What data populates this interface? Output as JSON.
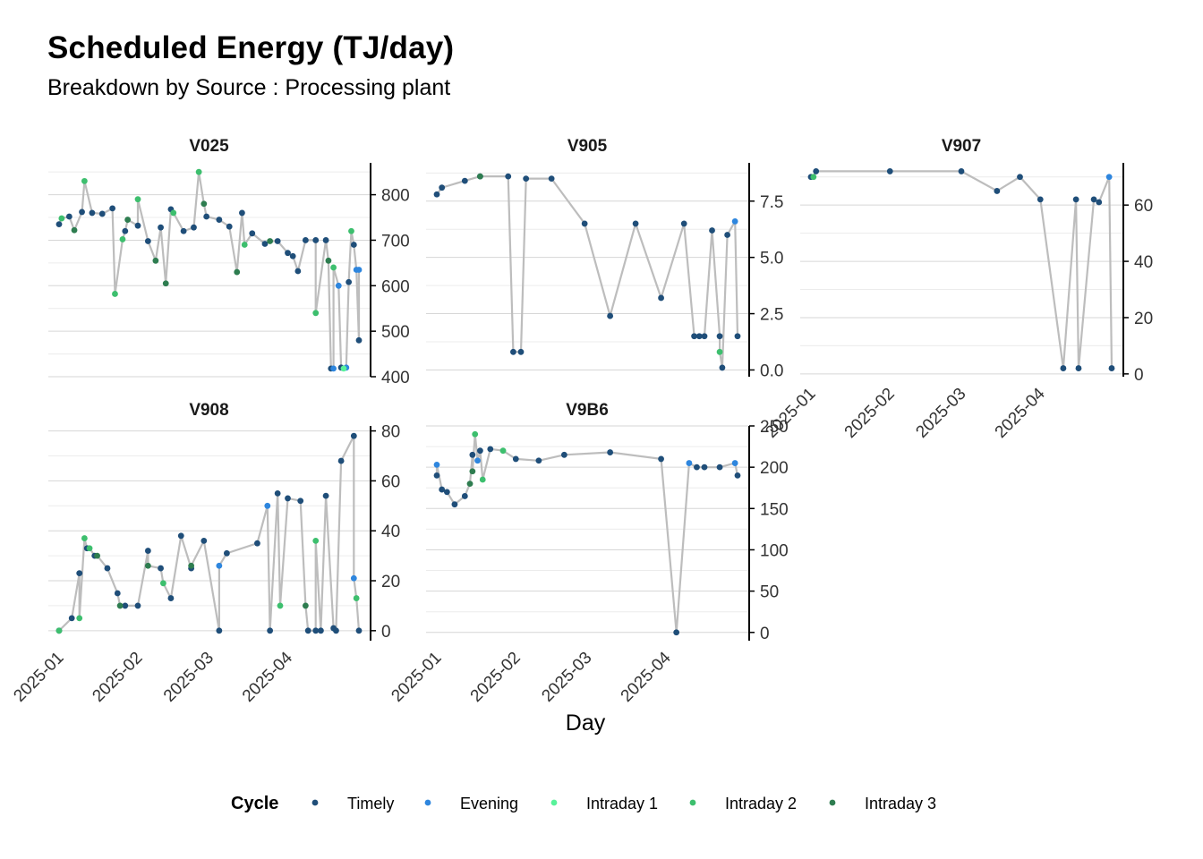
{
  "title": "Scheduled Energy (TJ/day)",
  "subtitle": "Breakdown by Source :  Processing plant",
  "chart_data": {
    "type": "scatter",
    "title": "Scheduled Energy (TJ/day)",
    "subtitle": "Breakdown by Source :  Processing plant",
    "xlabel": "Day",
    "ylabel": "",
    "x_tick_labels": [
      "2025-01",
      "2025-02",
      "2025-03",
      "2025-04"
    ],
    "x_range": [
      "2025-01-01",
      "2025-04-29"
    ],
    "grid": true,
    "y_axis_position": "right",
    "legend": {
      "title": "Cycle",
      "position": "bottom",
      "entries": [
        {
          "name": "Timely",
          "color": "#1f4e79"
        },
        {
          "name": "Evening",
          "color": "#2e86de"
        },
        {
          "name": "Intraday 1",
          "color": "#58f29a"
        },
        {
          "name": "Intraday 2",
          "color": "#3dbf6e"
        },
        {
          "name": "Intraday 3",
          "color": "#2e7d50"
        }
      ]
    },
    "line_color": "#bdbdbd",
    "facets": [
      {
        "name": "V025",
        "ylim": [
          400,
          870
        ],
        "yticks": [
          "400",
          "500",
          "600",
          "700",
          "800"
        ],
        "ytick_values": [
          400,
          500,
          600,
          700,
          800
        ],
        "series": {
          "Timely": [
            [
              "2025-01-01",
              735
            ],
            [
              "2025-01-05",
              752
            ],
            [
              "2025-01-10",
              762
            ],
            [
              "2025-01-14",
              760
            ],
            [
              "2025-01-18",
              758
            ],
            [
              "2025-01-22",
              770
            ],
            [
              "2025-01-27",
              720
            ],
            [
              "2025-02-01",
              732
            ],
            [
              "2025-02-05",
              698
            ],
            [
              "2025-02-10",
              728
            ],
            [
              "2025-02-14",
              768
            ],
            [
              "2025-02-19",
              720
            ],
            [
              "2025-02-23",
              728
            ],
            [
              "2025-02-28",
              752
            ],
            [
              "2025-03-05",
              745
            ],
            [
              "2025-03-09",
              730
            ],
            [
              "2025-03-14",
              760
            ],
            [
              "2025-03-18",
              715
            ],
            [
              "2025-03-23",
              692
            ],
            [
              "2025-03-28",
              698
            ],
            [
              "2025-04-01",
              672
            ],
            [
              "2025-04-03",
              665
            ],
            [
              "2025-04-05",
              632
            ],
            [
              "2025-04-08",
              700
            ],
            [
              "2025-04-12",
              700
            ],
            [
              "2025-04-16",
              700
            ],
            [
              "2025-04-18",
              418
            ],
            [
              "2025-04-22",
              420
            ],
            [
              "2025-04-25",
              608
            ],
            [
              "2025-04-27",
              690
            ],
            [
              "2025-04-29",
              480
            ]
          ],
          "Evening": [
            [
              "2025-04-19",
              418
            ],
            [
              "2025-04-21",
              600
            ],
            [
              "2025-04-24",
              420
            ],
            [
              "2025-04-28",
              635
            ],
            [
              "2025-04-29",
              635
            ]
          ],
          "Intraday 1": [
            [
              "2025-04-23",
              418
            ]
          ],
          "Intraday 2": [
            [
              "2025-01-02",
              748
            ],
            [
              "2025-01-11",
              830
            ],
            [
              "2025-01-23",
              582
            ],
            [
              "2025-01-26",
              702
            ],
            [
              "2025-02-01",
              790
            ],
            [
              "2025-02-15",
              760
            ],
            [
              "2025-02-25",
              850
            ],
            [
              "2025-03-15",
              690
            ],
            [
              "2025-04-12",
              540
            ],
            [
              "2025-04-19",
              640
            ],
            [
              "2025-04-26",
              720
            ]
          ],
          "Intraday 3": [
            [
              "2025-01-07",
              722
            ],
            [
              "2025-01-28",
              745
            ],
            [
              "2025-02-08",
              655
            ],
            [
              "2025-02-12",
              605
            ],
            [
              "2025-02-27",
              780
            ],
            [
              "2025-03-12",
              630
            ],
            [
              "2025-03-25",
              698
            ],
            [
              "2025-04-17",
              655
            ]
          ]
        }
      },
      {
        "name": "V905",
        "ylim": [
          -0.3,
          9.2
        ],
        "yticks": [
          "0.0",
          "2.5",
          "5.0",
          "7.5"
        ],
        "ytick_values": [
          0,
          2.5,
          5.0,
          7.5
        ],
        "series": {
          "Timely": [
            [
              "2025-01-01",
              7.8
            ],
            [
              "2025-01-03",
              8.1
            ],
            [
              "2025-01-12",
              8.4
            ],
            [
              "2025-01-18",
              8.6
            ],
            [
              "2025-01-29",
              8.6
            ],
            [
              "2025-01-31",
              0.8
            ],
            [
              "2025-02-03",
              0.8
            ],
            [
              "2025-02-05",
              8.5
            ],
            [
              "2025-02-15",
              8.5
            ],
            [
              "2025-02-28",
              6.5
            ],
            [
              "2025-03-10",
              2.4
            ],
            [
              "2025-03-20",
              6.5
            ],
            [
              "2025-03-30",
              3.2
            ],
            [
              "2025-04-08",
              6.5
            ],
            [
              "2025-04-12",
              1.5
            ],
            [
              "2025-04-14",
              1.5
            ],
            [
              "2025-04-16",
              1.5
            ],
            [
              "2025-04-19",
              6.2
            ],
            [
              "2025-04-22",
              1.5
            ],
            [
              "2025-04-23",
              0.1
            ],
            [
              "2025-04-25",
              6.0
            ],
            [
              "2025-04-29",
              1.5
            ]
          ],
          "Evening": [
            [
              "2025-04-28",
              6.6
            ]
          ],
          "Intraday 1": [],
          "Intraday 2": [
            [
              "2025-04-22",
              0.8
            ]
          ],
          "Intraday 3": [
            [
              "2025-01-18",
              8.6
            ]
          ]
        }
      },
      {
        "name": "V907",
        "ylim": [
          -1,
          75
        ],
        "yticks": [
          "0",
          "20",
          "40",
          "60"
        ],
        "ytick_values": [
          0,
          20,
          40,
          60
        ],
        "series": {
          "Timely": [
            [
              "2025-01-01",
              70
            ],
            [
              "2025-01-03",
              72
            ],
            [
              "2025-02-01",
              72
            ],
            [
              "2025-03-01",
              72
            ],
            [
              "2025-03-15",
              65
            ],
            [
              "2025-03-24",
              70
            ],
            [
              "2025-04-01",
              62
            ],
            [
              "2025-04-10",
              2
            ],
            [
              "2025-04-15",
              62
            ],
            [
              "2025-04-16",
              2
            ],
            [
              "2025-04-22",
              62
            ],
            [
              "2025-04-24",
              61
            ],
            [
              "2025-04-29",
              2
            ]
          ],
          "Evening": [
            [
              "2025-04-28",
              70
            ]
          ],
          "Intraday 1": [],
          "Intraday 2": [
            [
              "2025-01-02",
              70
            ]
          ],
          "Intraday 3": []
        }
      },
      {
        "name": "V908",
        "ylim": [
          -4,
          82
        ],
        "yticks": [
          "0",
          "20",
          "40",
          "60",
          "80"
        ],
        "ytick_values": [
          0,
          20,
          40,
          60,
          80
        ],
        "series": {
          "Timely": [
            [
              "2025-01-01",
              0
            ],
            [
              "2025-01-06",
              5
            ],
            [
              "2025-01-09",
              23
            ],
            [
              "2025-01-12",
              33
            ],
            [
              "2025-01-15",
              30
            ],
            [
              "2025-01-20",
              25
            ],
            [
              "2025-01-24",
              15
            ],
            [
              "2025-01-27",
              10
            ],
            [
              "2025-02-01",
              10
            ],
            [
              "2025-02-05",
              32
            ],
            [
              "2025-02-10",
              25
            ],
            [
              "2025-02-14",
              13
            ],
            [
              "2025-02-18",
              38
            ],
            [
              "2025-02-22",
              25
            ],
            [
              "2025-02-27",
              36
            ],
            [
              "2025-03-05",
              0
            ],
            [
              "2025-03-08",
              31
            ],
            [
              "2025-03-20",
              35
            ],
            [
              "2025-03-25",
              0
            ],
            [
              "2025-03-28",
              55
            ],
            [
              "2025-04-01",
              53
            ],
            [
              "2025-04-06",
              52
            ],
            [
              "2025-04-09",
              0
            ],
            [
              "2025-04-12",
              0
            ],
            [
              "2025-04-14",
              0
            ],
            [
              "2025-04-16",
              54
            ],
            [
              "2025-04-19",
              1
            ],
            [
              "2025-04-20",
              0
            ],
            [
              "2025-04-22",
              68
            ],
            [
              "2025-04-27",
              78
            ],
            [
              "2025-04-29",
              0
            ]
          ],
          "Evening": [
            [
              "2025-03-05",
              26
            ],
            [
              "2025-03-24",
              50
            ],
            [
              "2025-04-27",
              21
            ]
          ],
          "Intraday 1": [],
          "Intraday 2": [
            [
              "2025-01-01",
              0
            ],
            [
              "2025-01-09",
              5
            ],
            [
              "2025-01-11",
              37
            ],
            [
              "2025-01-13",
              33
            ],
            [
              "2025-02-11",
              19
            ],
            [
              "2025-03-29",
              10
            ],
            [
              "2025-04-12",
              36
            ],
            [
              "2025-04-28",
              13
            ]
          ],
          "Intraday 3": [
            [
              "2025-01-16",
              30
            ],
            [
              "2025-01-25",
              10
            ],
            [
              "2025-02-05",
              26
            ],
            [
              "2025-02-22",
              26
            ],
            [
              "2025-04-08",
              10
            ]
          ]
        }
      },
      {
        "name": "V9B6",
        "ylim": [
          -10,
          250
        ],
        "yticks": [
          "0",
          "50",
          "100",
          "150",
          "200",
          "250"
        ],
        "ytick_values": [
          0,
          50,
          100,
          150,
          200,
          250
        ],
        "series": {
          "Timely": [
            [
              "2025-01-01",
              190
            ],
            [
              "2025-01-03",
              173
            ],
            [
              "2025-01-05",
              170
            ],
            [
              "2025-01-08",
              155
            ],
            [
              "2025-01-12",
              165
            ],
            [
              "2025-01-15",
              215
            ],
            [
              "2025-01-18",
              220
            ],
            [
              "2025-01-22",
              222
            ],
            [
              "2025-02-01",
              210
            ],
            [
              "2025-02-10",
              208
            ],
            [
              "2025-02-20",
              215
            ],
            [
              "2025-03-10",
              218
            ],
            [
              "2025-03-30",
              210
            ],
            [
              "2025-04-05",
              0
            ],
            [
              "2025-04-13",
              200
            ],
            [
              "2025-04-16",
              200
            ],
            [
              "2025-04-22",
              200
            ],
            [
              "2025-04-29",
              190
            ]
          ],
          "Evening": [
            [
              "2025-01-01",
              203
            ],
            [
              "2025-01-17",
              208
            ],
            [
              "2025-04-10",
              205
            ],
            [
              "2025-04-28",
              205
            ]
          ],
          "Intraday 1": [],
          "Intraday 2": [
            [
              "2025-01-16",
              240
            ],
            [
              "2025-01-19",
              185
            ],
            [
              "2025-01-27",
              220
            ]
          ],
          "Intraday 3": [
            [
              "2025-01-14",
              180
            ],
            [
              "2025-01-15",
              195
            ]
          ]
        }
      }
    ]
  }
}
